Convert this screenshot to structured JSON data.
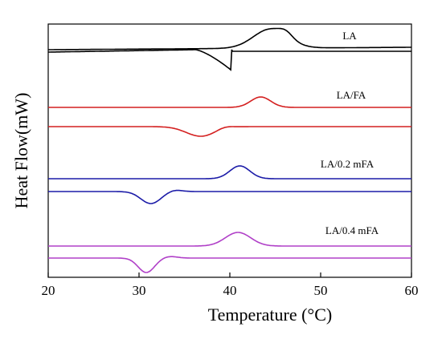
{
  "chart_data": {
    "type": "line",
    "title": "",
    "xlabel": "Temperature (°C)",
    "ylabel": "Heat Flow(mW)",
    "xlim": [
      20,
      60
    ],
    "xticks": [
      "20",
      "30",
      "40",
      "50",
      "60"
    ],
    "yticks_shown": false,
    "grid": false,
    "legend": "none",
    "series": [
      {
        "name": "LA",
        "color": "#000000",
        "heating_peak_c": 44.5,
        "cooling_peak_c": 40.2
      },
      {
        "name": "LA/FA",
        "color": "#d42020",
        "heating_peak_c": 43.4,
        "cooling_peak_c": 36.8
      },
      {
        "name": "LA/0.2 mFA",
        "color": "#1c1ca8",
        "heating_peak_c": 41.1,
        "cooling_peak_c": 31.3
      },
      {
        "name": "LA/0.4 mFA",
        "color": "#b040c8",
        "heating_peak_c": 40.9,
        "cooling_peak_c": 30.8
      }
    ]
  }
}
